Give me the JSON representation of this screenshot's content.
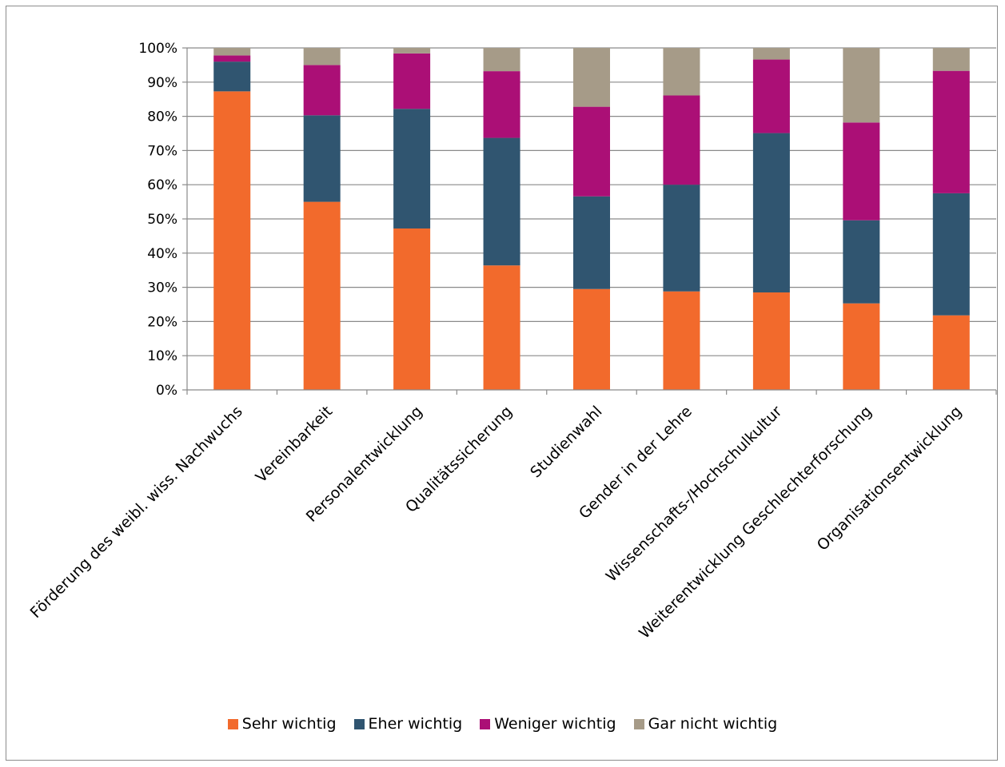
{
  "chart_data": {
    "type": "bar",
    "stacked": true,
    "percent": true,
    "categories": [
      "Förderung des weibl. wiss. Nachwuchs",
      "Vereinbarkeit",
      "Personalentwicklung",
      "Qualitätssicherung",
      "Studienwahl",
      "Gender in der Lehre",
      "Wissenschafts-/Hochschulkultur",
      "Weiterentwicklung Geschlechterforschung",
      "Organisationsentwicklung"
    ],
    "series": [
      {
        "name": "Sehr wichtig",
        "color": "#f26a2c",
        "values": [
          87.3,
          55.0,
          47.2,
          36.4,
          29.5,
          28.8,
          28.5,
          25.3,
          21.8
        ]
      },
      {
        "name": "Eher wichtig",
        "color": "#305570",
        "values": [
          8.7,
          25.3,
          35.0,
          37.3,
          27.1,
          31.2,
          46.6,
          24.3,
          35.7
        ]
      },
      {
        "name": "Weniger wichtig",
        "color": "#ab0f76",
        "values": [
          1.8,
          14.7,
          16.2,
          19.5,
          26.2,
          26.1,
          21.5,
          28.6,
          35.8
        ]
      },
      {
        "name": "Gar nicht wichtig",
        "color": "#a69b88",
        "values": [
          2.2,
          5.0,
          1.6,
          6.8,
          17.2,
          13.9,
          3.4,
          21.8,
          6.7
        ]
      }
    ],
    "yticks": [
      "0%",
      "10%",
      "20%",
      "30%",
      "40%",
      "50%",
      "60%",
      "70%",
      "80%",
      "90%",
      "100%"
    ],
    "ylim": [
      0,
      100
    ],
    "grid": true,
    "legend_position": "bottom"
  }
}
